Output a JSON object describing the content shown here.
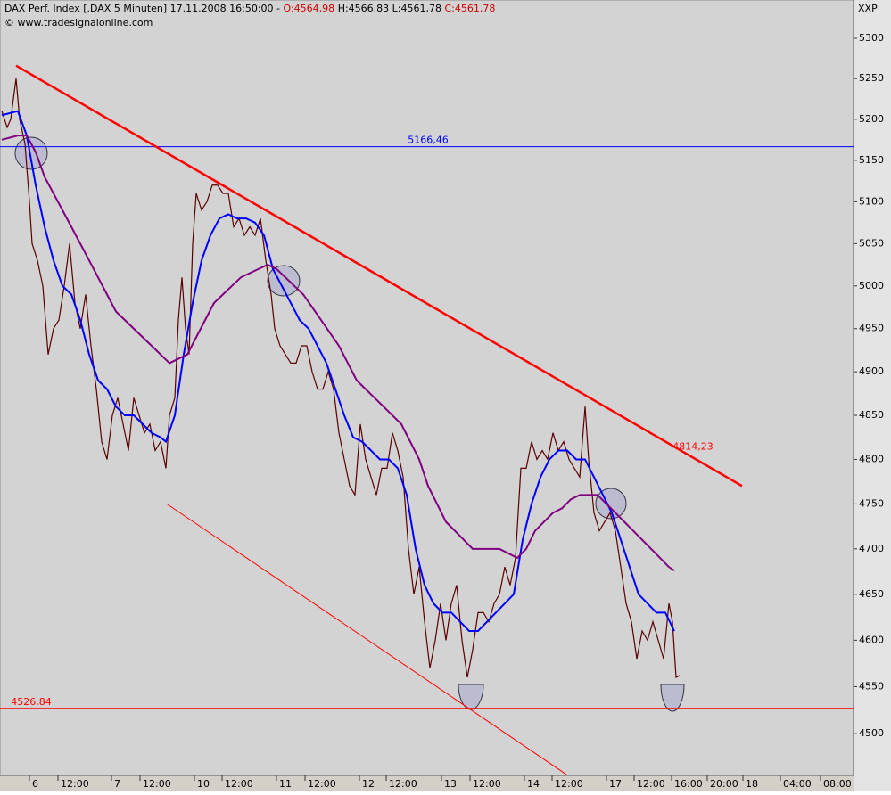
{
  "header": {
    "symbol": "DAX Perf. Index [.DAX  5 Minuten] 17.11.2008 16:50:00 -",
    "open": "O:4564,98",
    "high": "H:4566,83",
    "low": "L:4561,78",
    "close": "C:4561,78",
    "source": "© www.tradesignalonline.com",
    "axis_label": "XXP"
  },
  "chart_data": {
    "type": "line",
    "log_scale": true,
    "grid": false,
    "ylim": [
      4456,
      5348
    ],
    "yticks": [
      4500,
      4550,
      4600,
      4650,
      4700,
      4750,
      4800,
      4850,
      4900,
      4950,
      5000,
      5050,
      5100,
      5150,
      5200,
      5250,
      5300
    ],
    "xlim": [
      0,
      957
    ],
    "xticks": [
      {
        "value": 33,
        "label": "6"
      },
      {
        "value": 65,
        "label": "12:00"
      },
      {
        "value": 125,
        "label": "7"
      },
      {
        "value": 157,
        "label": "12:00"
      },
      {
        "value": 218,
        "label": "10"
      },
      {
        "value": 249,
        "label": "12:00"
      },
      {
        "value": 310,
        "label": "11"
      },
      {
        "value": 342,
        "label": "12:00"
      },
      {
        "value": 403,
        "label": "12"
      },
      {
        "value": 433,
        "label": "12:00"
      },
      {
        "value": 495,
        "label": "13"
      },
      {
        "value": 527,
        "label": "12:00"
      },
      {
        "value": 588,
        "label": "14"
      },
      {
        "value": 619,
        "label": "12:00"
      },
      {
        "value": 680,
        "label": "17"
      },
      {
        "value": 711,
        "label": "12:00"
      },
      {
        "value": 753,
        "label": "16:00"
      },
      {
        "value": 793,
        "label": "20:00"
      },
      {
        "value": 833,
        "label": "18"
      },
      {
        "value": 875,
        "label": "04:00"
      },
      {
        "value": 920,
        "label": "08:00"
      }
    ],
    "series": [
      {
        "color": "#5a0000",
        "width": 1.2,
        "x": [
          2,
          8,
          12,
          18,
          22,
          28,
          33,
          36,
          42,
          48,
          54,
          60,
          66,
          72,
          78,
          84,
          90,
          96,
          102,
          108,
          114,
          120,
          126,
          132,
          138,
          144,
          150,
          156,
          162,
          168,
          174,
          180,
          186,
          190,
          196,
          200,
          204,
          208,
          212,
          216,
          220,
          226,
          232,
          238,
          244,
          250,
          256,
          262,
          268,
          274,
          280,
          286,
          292,
          298,
          304,
          308,
          314,
          320,
          326,
          332,
          338,
          344,
          350,
          356,
          362,
          368,
          374,
          380,
          386,
          392,
          398,
          404,
          410,
          416,
          422,
          428,
          434,
          440,
          446,
          452,
          458,
          464,
          470,
          476,
          482,
          488,
          494,
          500,
          506,
          512,
          518,
          524,
          530,
          536,
          542,
          548,
          554,
          560,
          566,
          572,
          578,
          584,
          590,
          596,
          602,
          608,
          614,
          620,
          626,
          632,
          638,
          644,
          650,
          656,
          660,
          666,
          672,
          678,
          684,
          690,
          696,
          702,
          708,
          714,
          720,
          726,
          732,
          738,
          744,
          750,
          754,
          758,
          762
        ],
        "values": [
          5210,
          5190,
          5200,
          5250,
          5200,
          5170,
          5100,
          5050,
          5030,
          5000,
          4920,
          4950,
          4960,
          5000,
          5050,
          4980,
          4950,
          4990,
          4930,
          4880,
          4820,
          4800,
          4850,
          4870,
          4840,
          4810,
          4870,
          4850,
          4830,
          4840,
          4810,
          4820,
          4790,
          4850,
          4870,
          4960,
          5010,
          4950,
          4920,
          5050,
          5110,
          5090,
          5100,
          5120,
          5120,
          5110,
          5110,
          5070,
          5080,
          5060,
          5070,
          5060,
          5080,
          5030,
          4990,
          4950,
          4930,
          4920,
          4910,
          4910,
          4930,
          4930,
          4900,
          4880,
          4880,
          4900,
          4880,
          4830,
          4800,
          4770,
          4760,
          4840,
          4800,
          4780,
          4760,
          4790,
          4790,
          4830,
          4810,
          4780,
          4700,
          4650,
          4680,
          4620,
          4570,
          4600,
          4640,
          4600,
          4640,
          4660,
          4600,
          4560,
          4590,
          4630,
          4630,
          4620,
          4640,
          4650,
          4680,
          4660,
          4690,
          4790,
          4790,
          4820,
          4800,
          4810,
          4800,
          4830,
          4810,
          4820,
          4800,
          4790,
          4780,
          4860,
          4800,
          4740,
          4720,
          4730,
          4740,
          4720,
          4680,
          4640,
          4620,
          4580,
          4610,
          4600,
          4620,
          4600,
          4580,
          4640,
          4620,
          4560,
          4562
        ]
      },
      {
        "color": "#0000ff",
        "width": 2,
        "x": [
          2,
          20,
          30,
          40,
          50,
          60,
          70,
          80,
          90,
          100,
          110,
          120,
          130,
          140,
          150,
          160,
          170,
          180,
          186,
          196,
          206,
          216,
          226,
          236,
          246,
          256,
          266,
          276,
          286,
          296,
          306,
          316,
          326,
          336,
          346,
          356,
          366,
          376,
          386,
          396,
          406,
          416,
          426,
          436,
          446,
          456,
          466,
          476,
          486,
          496,
          506,
          516,
          526,
          536,
          546,
          556,
          566,
          576,
          586,
          596,
          606,
          616,
          626,
          636,
          646,
          656,
          666,
          676,
          686,
          696,
          706,
          716,
          726,
          736,
          746,
          756
        ],
        "values": [
          5205,
          5210,
          5180,
          5120,
          5070,
          5030,
          5000,
          4990,
          4960,
          4920,
          4890,
          4880,
          4860,
          4850,
          4850,
          4840,
          4830,
          4825,
          4820,
          4850,
          4920,
          4980,
          5030,
          5060,
          5080,
          5085,
          5080,
          5080,
          5075,
          5060,
          5020,
          5000,
          4980,
          4960,
          4950,
          4930,
          4910,
          4880,
          4850,
          4825,
          4820,
          4810,
          4800,
          4800,
          4790,
          4760,
          4700,
          4660,
          4640,
          4630,
          4630,
          4620,
          4610,
          4610,
          4620,
          4630,
          4640,
          4650,
          4710,
          4750,
          4780,
          4800,
          4810,
          4810,
          4800,
          4800,
          4780,
          4760,
          4740,
          4710,
          4680,
          4650,
          4640,
          4630,
          4630,
          4610
        ]
      },
      {
        "color": "#800080",
        "width": 2,
        "x": [
          2,
          20,
          30,
          40,
          50,
          60,
          70,
          80,
          90,
          100,
          110,
          120,
          130,
          140,
          150,
          160,
          170,
          180,
          190,
          200,
          210,
          220,
          230,
          240,
          250,
          260,
          270,
          280,
          290,
          300,
          310,
          320,
          330,
          340,
          350,
          360,
          370,
          380,
          390,
          400,
          410,
          420,
          430,
          440,
          450,
          460,
          470,
          480,
          490,
          500,
          510,
          520,
          530,
          540,
          550,
          560,
          570,
          580,
          590,
          600,
          610,
          620,
          630,
          640,
          650,
          660,
          670,
          680,
          690,
          700,
          710,
          720,
          730,
          740,
          750,
          756
        ],
        "values": [
          5175,
          5180,
          5180,
          5160,
          5130,
          5110,
          5090,
          5070,
          5050,
          5030,
          5010,
          4990,
          4970,
          4960,
          4950,
          4940,
          4930,
          4920,
          4910,
          4915,
          4920,
          4940,
          4960,
          4980,
          4990,
          5000,
          5010,
          5015,
          5020,
          5025,
          5020,
          5010,
          5000,
          4990,
          4975,
          4960,
          4945,
          4930,
          4910,
          4890,
          4880,
          4870,
          4860,
          4850,
          4840,
          4820,
          4800,
          4770,
          4750,
          4730,
          4720,
          4710,
          4700,
          4700,
          4700,
          4700,
          4695,
          4690,
          4700,
          4720,
          4730,
          4740,
          4745,
          4755,
          4760,
          4760,
          4760,
          4750,
          4740,
          4730,
          4720,
          4710,
          4700,
          4690,
          4680,
          4676
        ]
      }
    ],
    "trendlines": [
      {
        "color": "#ff0000",
        "width": 2.5,
        "x": [
          18,
          832
        ],
        "values": [
          5266,
          4770
        ]
      },
      {
        "color": "#ff0000",
        "width": 1,
        "x": [
          187,
          635
        ],
        "values": [
          4750,
          4457
        ]
      }
    ],
    "hlines": [
      {
        "value": 5166.46,
        "label": "5166,46",
        "color": "#0000ff",
        "label_x": 480
      },
      {
        "value": 4526.84,
        "label": "4526,84",
        "color": "#ff0000",
        "label_x": 35
      }
    ],
    "annotations": [
      {
        "text": "4814,23",
        "x": 777,
        "value": 4814.23,
        "color": "#ff0000"
      }
    ]
  }
}
